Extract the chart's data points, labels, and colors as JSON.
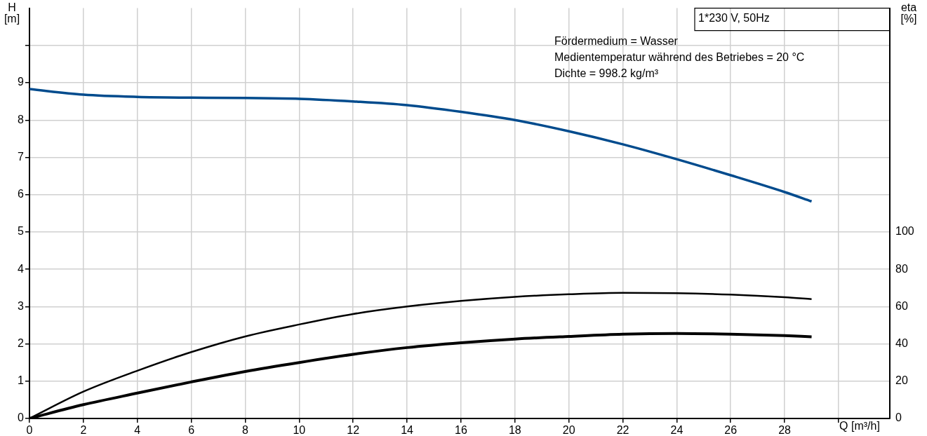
{
  "chart_data": {
    "type": "line",
    "title": "1*230 V, 50Hz",
    "xlabel": "Q [m³/h]",
    "ylabel": "H [m]",
    "y2label": "eta [%]",
    "annotations": [
      "Fördermedium = Wasser",
      "Medientemperatur während des Betriebes = 20 °C",
      "Dichte = 998.2 kg/m³"
    ],
    "x": [
      0,
      2,
      4,
      6,
      8,
      10,
      12,
      14,
      16,
      18,
      20,
      22,
      24,
      26,
      28,
      29
    ],
    "series": [
      {
        "color": "#004b8d",
        "values": [
          8.83,
          8.68,
          8.62,
          8.6,
          8.59,
          8.57,
          8.5,
          8.4,
          8.22,
          8.0,
          7.7,
          7.35,
          6.95,
          6.52,
          6.07,
          5.82
        ]
      },
      {
        "color": "#000000",
        "axis": "y2",
        "values": [
          0,
          14.4,
          25.6,
          35.6,
          44,
          50.4,
          56,
          60,
          63,
          65.2,
          66.6,
          67.4,
          67.2,
          66.4,
          65,
          64
        ]
      },
      {
        "color": "#000000",
        "axis": "y2",
        "values": [
          0,
          7.4,
          13.6,
          19.6,
          25.2,
          30,
          34.4,
          38,
          40.6,
          42.6,
          44,
          45.2,
          45.6,
          45.2,
          44.4,
          43.8
        ]
      }
    ],
    "xlim": [
      0,
      31.9
    ],
    "xticks": [
      0,
      2,
      4,
      6,
      8,
      10,
      12,
      14,
      16,
      18,
      20,
      22,
      24,
      26,
      28,
      {
        "value": 30,
        "label": null
      }
    ],
    "ylim": [
      0,
      11
    ],
    "yticks": [
      0,
      1,
      2,
      3,
      4,
      5,
      6,
      7,
      8,
      9,
      {
        "value": 10,
        "label": null
      }
    ],
    "y2lim": [
      0,
      220
    ],
    "y2ticks": [
      0,
      20,
      40,
      60,
      80,
      100
    ],
    "grid": true,
    "legend": false,
    "marker": "none",
    "line_style": "solid"
  }
}
